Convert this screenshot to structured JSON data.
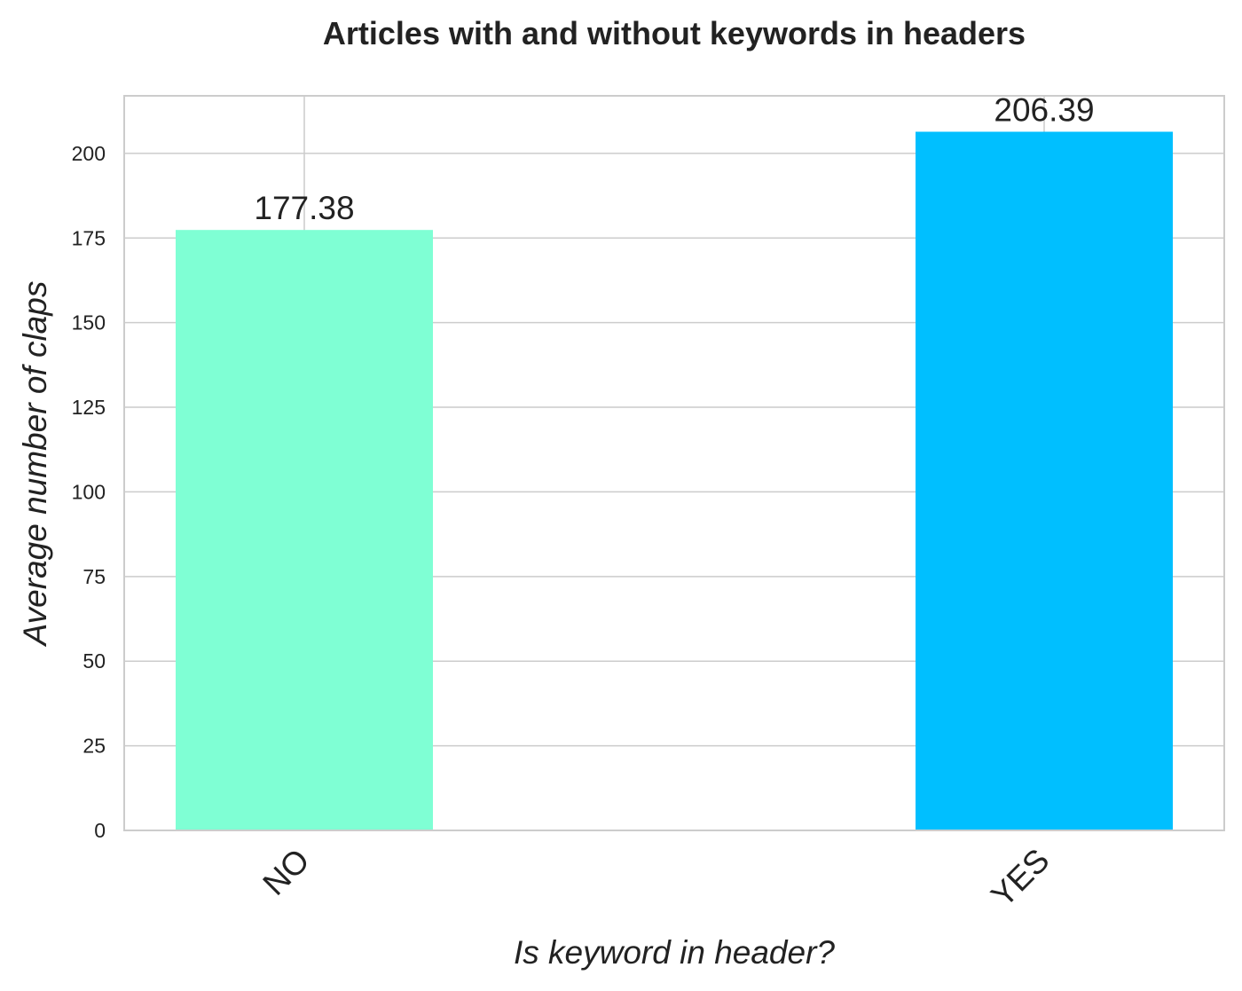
{
  "chart_data": {
    "type": "bar",
    "title": "Articles with and without keywords in headers",
    "xlabel": "Is keyword in header?",
    "ylabel": "Average number of claps",
    "categories": [
      "NO",
      "YES"
    ],
    "values": [
      177.38,
      206.39
    ],
    "value_labels": [
      "177.38",
      "206.39"
    ],
    "colors": [
      "#7fffd4",
      "#00bfff"
    ],
    "ylim": [
      0,
      217
    ],
    "yticks": [
      0,
      25,
      50,
      75,
      100,
      125,
      150,
      175,
      200
    ],
    "grid": true,
    "legend": "none",
    "xtick_rotation": 45
  }
}
